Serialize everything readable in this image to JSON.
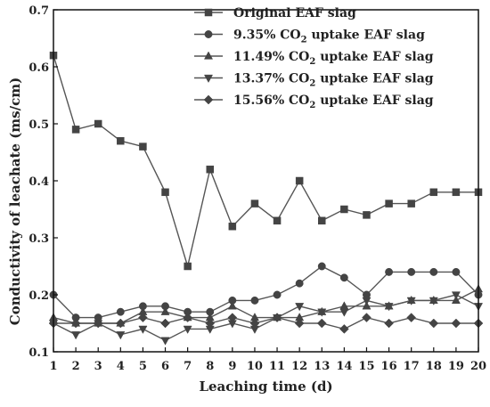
{
  "chart_data": {
    "type": "line",
    "title": "",
    "xlabel": "Leaching time (d)",
    "ylabel": "Conductivity of leachate  (ms/cm)",
    "xlim": [
      1,
      20
    ],
    "ylim": [
      0.1,
      0.7
    ],
    "x": [
      1,
      2,
      3,
      4,
      5,
      6,
      7,
      8,
      9,
      10,
      11,
      12,
      13,
      14,
      15,
      16,
      17,
      18,
      19,
      20
    ],
    "x_ticks": [
      "1",
      "2",
      "3",
      "4",
      "5",
      "6",
      "7",
      "8",
      "9",
      "10",
      "11",
      "12",
      "13",
      "14",
      "15",
      "16",
      "17",
      "18",
      "19",
      "20"
    ],
    "y_ticks": [
      "0.1",
      "0.2",
      "0.3",
      "0.4",
      "0.5",
      "0.6",
      "0.7"
    ],
    "grid": false,
    "legend_position": "top-right",
    "series": [
      {
        "name": "Original EAF slag",
        "legend": {
          "pre": "Original EAF slag",
          "sub": "",
          "post": ""
        },
        "marker": "square",
        "values": [
          0.62,
          0.49,
          0.5,
          0.47,
          0.46,
          0.38,
          0.25,
          0.42,
          0.32,
          0.36,
          0.33,
          0.4,
          0.33,
          0.35,
          0.34,
          0.36,
          0.36,
          0.38,
          0.38,
          0.38
        ]
      },
      {
        "name": "9.35% CO2 uptake EAF slag",
        "legend": {
          "pre": "9.35% CO",
          "sub": "2",
          "post": " uptake EAF slag"
        },
        "marker": "circle",
        "values": [
          0.2,
          0.16,
          0.16,
          0.17,
          0.18,
          0.18,
          0.17,
          0.17,
          0.19,
          0.19,
          0.2,
          0.22,
          0.25,
          0.23,
          0.2,
          0.24,
          0.24,
          0.24,
          0.24,
          0.2
        ]
      },
      {
        "name": "11.49% CO2 uptake EAF slag",
        "legend": {
          "pre": "11.49% CO",
          "sub": "2",
          "post": " uptake EAF slag"
        },
        "marker": "triangle-up",
        "values": [
          0.16,
          0.15,
          0.15,
          0.15,
          0.17,
          0.17,
          0.16,
          0.16,
          0.18,
          0.16,
          0.16,
          0.16,
          0.17,
          0.18,
          0.18,
          0.18,
          0.19,
          0.19,
          0.19,
          0.21
        ]
      },
      {
        "name": "13.37% CO2 uptake EAF slag",
        "legend": {
          "pre": "13.37% CO",
          "sub": "2",
          "post": " uptake EAF slag"
        },
        "marker": "triangle-down",
        "values": [
          0.15,
          0.13,
          0.15,
          0.13,
          0.14,
          0.12,
          0.14,
          0.14,
          0.15,
          0.14,
          0.16,
          0.18,
          0.17,
          0.17,
          0.19,
          0.18,
          0.19,
          0.19,
          0.2,
          0.18
        ]
      },
      {
        "name": "15.56% CO2 uptake EAF slag",
        "legend": {
          "pre": "15.56% CO",
          "sub": "2",
          "post": " uptake EAF slag"
        },
        "marker": "diamond",
        "values": [
          0.15,
          0.15,
          0.15,
          0.15,
          0.16,
          0.15,
          0.16,
          0.15,
          0.16,
          0.15,
          0.16,
          0.15,
          0.15,
          0.14,
          0.16,
          0.15,
          0.16,
          0.15,
          0.15,
          0.15
        ]
      }
    ],
    "colors": {
      "line": "#555555",
      "marker": "#444444",
      "axis": "#111111"
    }
  }
}
